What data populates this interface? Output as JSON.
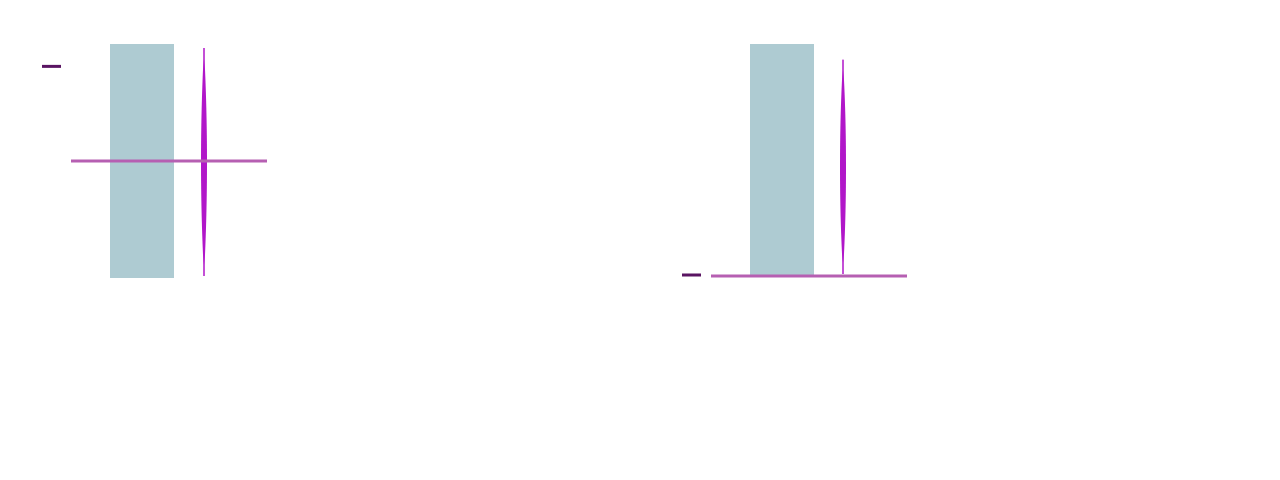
{
  "colors": {
    "bar": "#aecbd2",
    "violin": "#b117c9",
    "reference_line": "#b65fb2",
    "marker": "#5a1462",
    "background": "#ffffff"
  },
  "chart_data": [
    {
      "type": "bar",
      "panel": "left",
      "elements": [
        "bar",
        "violin",
        "horizontal-reference-line",
        "y-marker"
      ],
      "bar": {
        "value": 1.0
      },
      "violin": {
        "range": [
          0.0,
          1.0
        ],
        "center": 0.5
      },
      "reference_line": {
        "y": 0.5
      },
      "marker": {
        "y": 0.9
      },
      "ylim": [
        0,
        1
      ],
      "grid": false,
      "legend": "none"
    },
    {
      "type": "bar",
      "panel": "right",
      "elements": [
        "bar",
        "violin",
        "horizontal-reference-line",
        "y-marker"
      ],
      "bar": {
        "value": 1.0
      },
      "violin": {
        "range": [
          0.0,
          0.95
        ],
        "center": 0.5
      },
      "reference_line": {
        "y": 0.0
      },
      "marker": {
        "y": 0.0
      },
      "ylim": [
        0,
        1
      ],
      "grid": false,
      "legend": "none"
    }
  ]
}
